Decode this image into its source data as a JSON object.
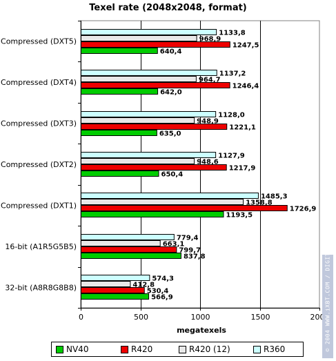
{
  "chart_data": {
    "type": "bar",
    "orientation": "horizontal",
    "title": "Texel rate (2048x2048, format)",
    "xlabel": "megatexels",
    "ylabel": "",
    "xlim": [
      0,
      2000
    ],
    "xticks": [
      "0",
      "500",
      "1000",
      "1500",
      "2000"
    ],
    "grid": true,
    "legend_position": "bottom",
    "categories": [
      "Compressed (DXT5)",
      "Compressed (DXT4)",
      "Compressed (DXT3)",
      "Compressed (DXT2)",
      "Compressed (DXT1)",
      "16-bit (A1R5G5B5)",
      "32-bit (A8R8G8B8)"
    ],
    "series": [
      {
        "name": "NV40",
        "color": "#00cc00",
        "values": [
          640.4,
          642.0,
          635.0,
          650.4,
          1193.5,
          837.8,
          566.9
        ],
        "labels": [
          "640,4",
          "642,0",
          "635,0",
          "650,4",
          "1193,5",
          "837,8",
          "566,9"
        ]
      },
      {
        "name": "R420",
        "color": "#ee0000",
        "values": [
          1247.5,
          1246.4,
          1221.1,
          1217.9,
          1726.9,
          799.7,
          530.4
        ],
        "labels": [
          "1247,5",
          "1246,4",
          "1221,1",
          "1217,9",
          "1726,9",
          "799,7",
          "530,4"
        ]
      },
      {
        "name": "R420 (12)",
        "color": "#e8e8e8",
        "values": [
          968.9,
          964.7,
          948.9,
          948.6,
          1358.8,
          663.1,
          412.8
        ],
        "labels": [
          "968,9",
          "964,7",
          "948,9",
          "948,6",
          "1358,8",
          "663,1",
          "412,8"
        ]
      },
      {
        "name": "R360",
        "color": "#ccffff",
        "values": [
          1133.8,
          1137.2,
          1128.0,
          1127.9,
          1485.3,
          779.4,
          574.3
        ],
        "labels": [
          "1133,8",
          "1137,2",
          "1128,0",
          "1127,9",
          "1485,3",
          "779,4",
          "574,3"
        ]
      }
    ]
  },
  "watermark": {
    "text": "© 2004 WWW.iXBT.COM / DIGIT-LIFE.COM"
  }
}
